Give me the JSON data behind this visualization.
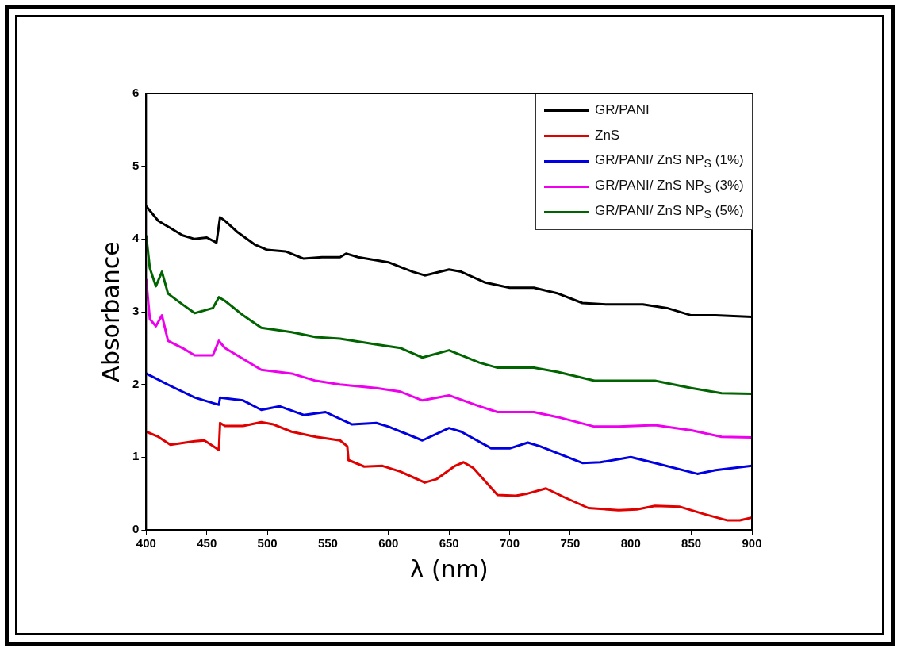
{
  "chart_data": {
    "type": "line",
    "xlabel": "λ (nm)",
    "ylabel": "Absorbance",
    "xlim": [
      400,
      900
    ],
    "xticks": [
      400,
      450,
      500,
      550,
      600,
      650,
      700,
      750,
      800,
      850,
      900
    ],
    "ylim": [
      0,
      6
    ],
    "yticks": [
      0,
      1,
      2,
      3,
      4,
      5,
      6
    ],
    "grid": false,
    "legend": "top right",
    "marker": "none",
    "line_style": "solid",
    "series": [
      {
        "name": "GR/PANI",
        "color": "#000000",
        "x": [
          400,
          405,
          410,
          420,
          430,
          440,
          450,
          458,
          461,
          465,
          475,
          490,
          500,
          515,
          530,
          545,
          560,
          565,
          575,
          600,
          620,
          630,
          650,
          660,
          680,
          700,
          720,
          740,
          760,
          780,
          810,
          830,
          850,
          870,
          900
        ],
        "values": [
          4.45,
          4.35,
          4.25,
          4.15,
          4.05,
          4.0,
          4.02,
          3.95,
          4.3,
          4.25,
          4.1,
          3.92,
          3.85,
          3.83,
          3.73,
          3.75,
          3.75,
          3.8,
          3.75,
          3.68,
          3.55,
          3.5,
          3.58,
          3.55,
          3.4,
          3.33,
          3.33,
          3.25,
          3.12,
          3.1,
          3.1,
          3.05,
          2.95,
          2.95,
          2.93
        ]
      },
      {
        "name": "ZnS",
        "color": "#e00000",
        "x": [
          400,
          410,
          420,
          440,
          448,
          460,
          461,
          465,
          480,
          495,
          505,
          520,
          540,
          560,
          566,
          567,
          580,
          595,
          610,
          630,
          640,
          655,
          662,
          670,
          690,
          705,
          715,
          730,
          745,
          765,
          790,
          805,
          820,
          840,
          860,
          880,
          890,
          900
        ],
        "values": [
          1.35,
          1.28,
          1.17,
          1.22,
          1.23,
          1.1,
          1.47,
          1.43,
          1.43,
          1.48,
          1.45,
          1.35,
          1.28,
          1.23,
          1.15,
          0.96,
          0.87,
          0.88,
          0.8,
          0.65,
          0.7,
          0.88,
          0.93,
          0.85,
          0.48,
          0.47,
          0.5,
          0.57,
          0.45,
          0.3,
          0.27,
          0.28,
          0.33,
          0.32,
          0.22,
          0.13,
          0.13,
          0.17
        ]
      },
      {
        "name": "GR/PANI/  ZnS NP$_{S}$ (1%)",
        "color": "#0000e0",
        "x": [
          400,
          420,
          440,
          460,
          461,
          470,
          480,
          495,
          510,
          530,
          548,
          570,
          590,
          600,
          628,
          650,
          660,
          685,
          700,
          715,
          725,
          760,
          775,
          800,
          820,
          855,
          870,
          900
        ],
        "values": [
          2.15,
          1.98,
          1.82,
          1.72,
          1.82,
          1.8,
          1.78,
          1.65,
          1.7,
          1.58,
          1.62,
          1.45,
          1.47,
          1.42,
          1.23,
          1.4,
          1.35,
          1.12,
          1.12,
          1.2,
          1.15,
          0.92,
          0.93,
          1.0,
          0.92,
          0.77,
          0.82,
          0.88
        ]
      },
      {
        "name": "GR/PANI/  ZnS NP$_{S}$ (3%)",
        "color": "#ee00ee",
        "x": [
          400,
          403,
          408,
          413,
          418,
          430,
          440,
          455,
          460,
          465,
          480,
          495,
          520,
          540,
          560,
          590,
          610,
          628,
          650,
          675,
          690,
          720,
          740,
          770,
          790,
          820,
          850,
          875,
          900
        ],
        "values": [
          3.45,
          2.9,
          2.8,
          2.95,
          2.6,
          2.5,
          2.4,
          2.4,
          2.6,
          2.5,
          2.35,
          2.2,
          2.15,
          2.05,
          2.0,
          1.95,
          1.9,
          1.78,
          1.85,
          1.7,
          1.62,
          1.62,
          1.55,
          1.42,
          1.42,
          1.44,
          1.37,
          1.28,
          1.27
        ]
      },
      {
        "name": "GR/PANI/  ZnS NP$_{S}$  (5%)",
        "color": "#006400",
        "x": [
          400,
          403,
          408,
          413,
          418,
          430,
          440,
          455,
          460,
          465,
          480,
          495,
          520,
          540,
          560,
          590,
          610,
          628,
          650,
          675,
          690,
          720,
          740,
          770,
          790,
          820,
          850,
          875,
          900
        ],
        "values": [
          4.05,
          3.6,
          3.35,
          3.55,
          3.25,
          3.1,
          2.98,
          3.05,
          3.2,
          3.15,
          2.95,
          2.78,
          2.72,
          2.65,
          2.63,
          2.55,
          2.5,
          2.37,
          2.47,
          2.3,
          2.23,
          2.23,
          2.17,
          2.05,
          2.05,
          2.05,
          1.95,
          1.88,
          1.87
        ]
      }
    ]
  }
}
